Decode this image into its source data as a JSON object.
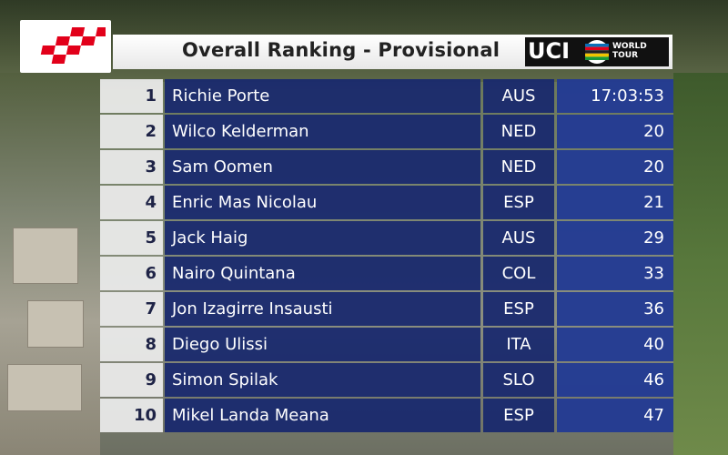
{
  "header": {
    "title": "Overall Ranking - Provisional",
    "uci_text": "UCI",
    "world_tour_line1": "WORLD",
    "world_tour_line2": "TOUR"
  },
  "colors": {
    "name_cell": "#18286e",
    "time_cell": "#223a94",
    "rank_cell": "#ececec",
    "logo_red": "#e2001a"
  },
  "ranking": [
    {
      "rank": "1",
      "name": "Richie Porte",
      "nation": "AUS",
      "time": "17:03:53"
    },
    {
      "rank": "2",
      "name": "Wilco Kelderman",
      "nation": "NED",
      "time": "20"
    },
    {
      "rank": "3",
      "name": "Sam Oomen",
      "nation": "NED",
      "time": "20"
    },
    {
      "rank": "4",
      "name": "Enric Mas Nicolau",
      "nation": "ESP",
      "time": "21"
    },
    {
      "rank": "5",
      "name": "Jack Haig",
      "nation": "AUS",
      "time": "29"
    },
    {
      "rank": "6",
      "name": "Nairo Quintana",
      "nation": "COL",
      "time": "33"
    },
    {
      "rank": "7",
      "name": "Jon Izagirre Insausti",
      "nation": "ESP",
      "time": "36"
    },
    {
      "rank": "8",
      "name": "Diego Ulissi",
      "nation": "ITA",
      "time": "40"
    },
    {
      "rank": "9",
      "name": "Simon Spilak",
      "nation": "SLO",
      "time": "46"
    },
    {
      "rank": "10",
      "name": "Mikel Landa Meana",
      "nation": "ESP",
      "time": "47"
    }
  ]
}
